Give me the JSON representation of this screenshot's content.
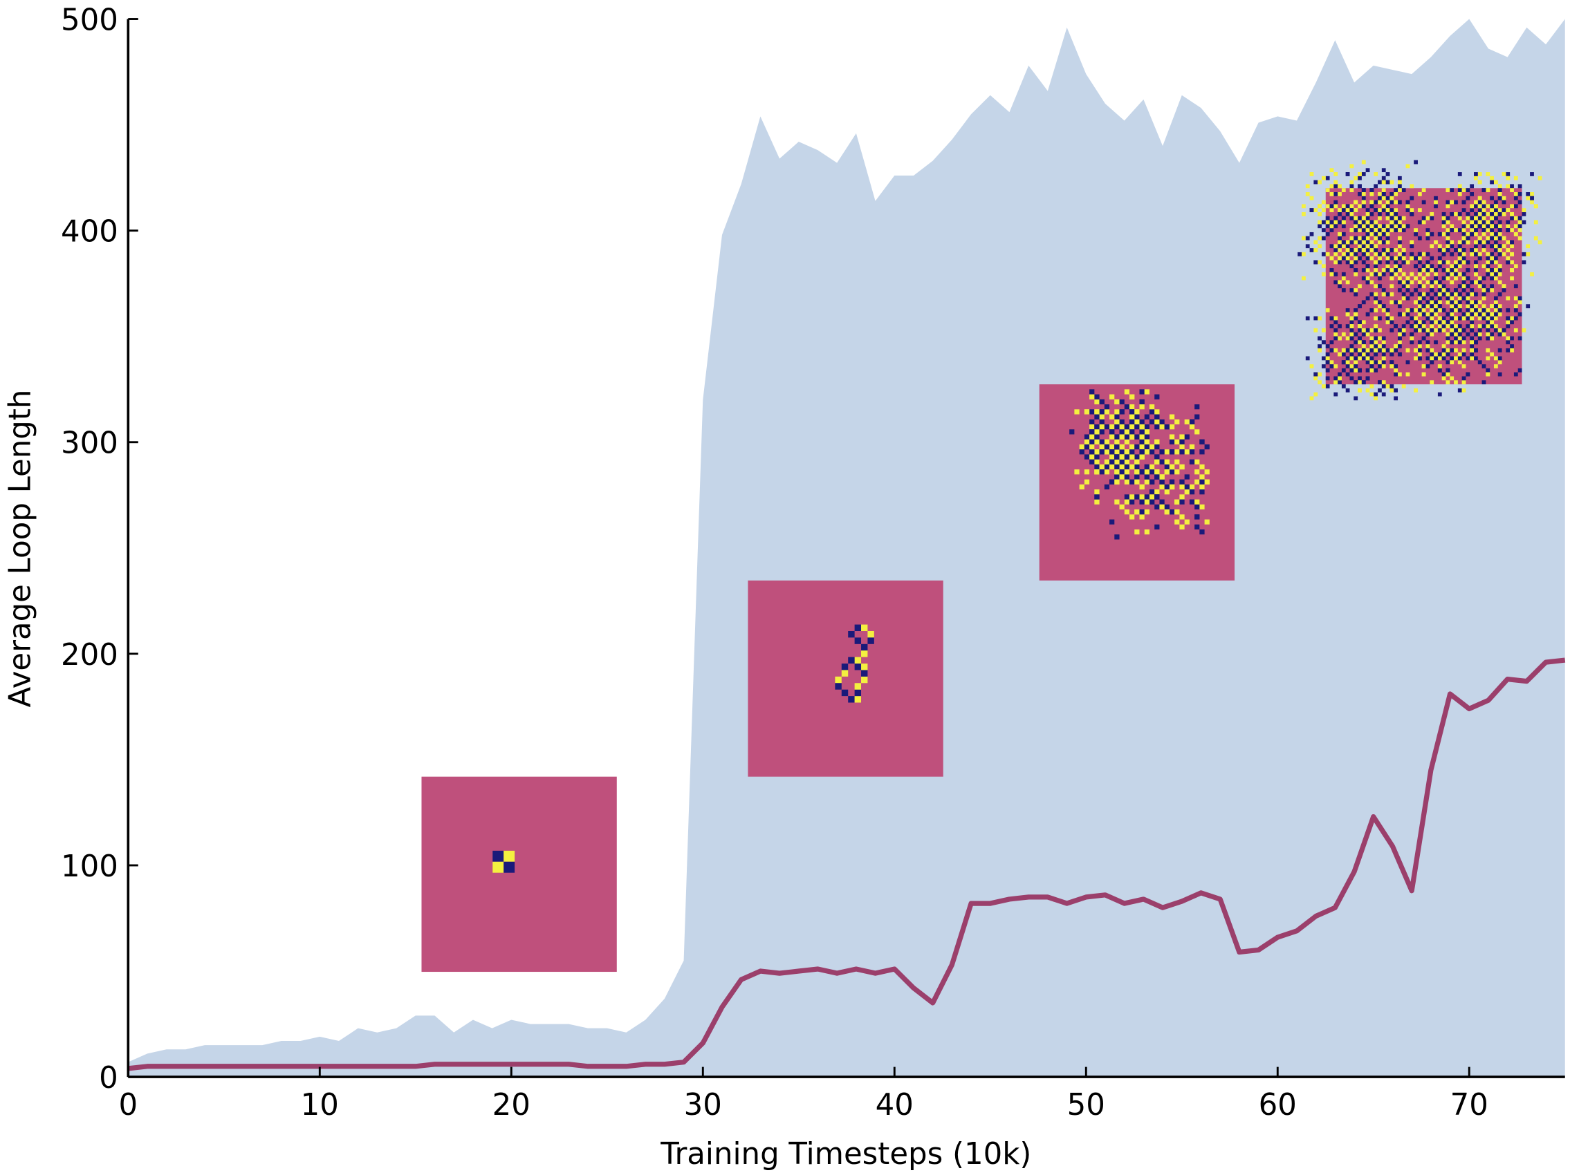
{
  "chart_data": {
    "type": "line",
    "xlabel": "Training Timesteps (10k)",
    "ylabel": "Average Loop Length",
    "x": [
      0,
      1,
      2,
      3,
      4,
      5,
      6,
      7,
      8,
      9,
      10,
      11,
      12,
      13,
      14,
      15,
      16,
      17,
      18,
      19,
      20,
      21,
      22,
      23,
      24,
      25,
      26,
      27,
      28,
      29,
      30,
      31,
      32,
      33,
      34,
      35,
      36,
      37,
      38,
      39,
      40,
      41,
      42,
      43,
      44,
      45,
      46,
      47,
      48,
      49,
      50,
      51,
      52,
      53,
      54,
      55,
      56,
      57,
      58,
      59,
      60,
      61,
      62,
      63,
      64,
      65,
      66,
      67,
      68,
      69,
      70,
      71,
      72,
      73,
      74,
      75
    ],
    "area": {
      "color": "#c5d5e8",
      "values": [
        7,
        11,
        13,
        13,
        15,
        15,
        15,
        15,
        17,
        17,
        19,
        17,
        23,
        21,
        23,
        29,
        29,
        21,
        27,
        23,
        27,
        25,
        25,
        25,
        23,
        23,
        21,
        27,
        37,
        55,
        320,
        398,
        422,
        454,
        434,
        442,
        438,
        432,
        446,
        414,
        426,
        426,
        433,
        443,
        455,
        464,
        456,
        478,
        466,
        496,
        474,
        460,
        452,
        462,
        440,
        464,
        458,
        447,
        432,
        451,
        454,
        452,
        470,
        490,
        470,
        478,
        476,
        474,
        482,
        492,
        500,
        486,
        482,
        496,
        488,
        500
      ]
    },
    "series": [
      {
        "color": "#9b3f6b",
        "values": [
          4,
          5,
          5,
          5,
          5,
          5,
          5,
          5,
          5,
          5,
          5,
          5,
          5,
          5,
          5,
          5,
          6,
          6,
          6,
          6,
          6,
          6,
          6,
          6,
          5,
          5,
          5,
          6,
          6,
          7,
          16,
          33,
          46,
          50,
          49,
          50,
          51,
          49,
          51,
          49,
          51,
          42,
          35,
          53,
          82,
          82,
          84,
          85,
          85,
          82,
          85,
          86,
          82,
          84,
          80,
          83,
          87,
          84,
          59,
          60,
          66,
          69,
          76,
          80,
          97,
          123,
          109,
          88,
          145,
          181,
          174,
          178,
          188,
          187,
          196,
          197
        ]
      }
    ],
    "xlim": [
      0,
      75
    ],
    "ylim": [
      0,
      500
    ],
    "xticks": [
      0,
      10,
      20,
      30,
      40,
      50,
      60,
      70
    ],
    "yticks": [
      0,
      100,
      200,
      300,
      400,
      500
    ]
  }
}
